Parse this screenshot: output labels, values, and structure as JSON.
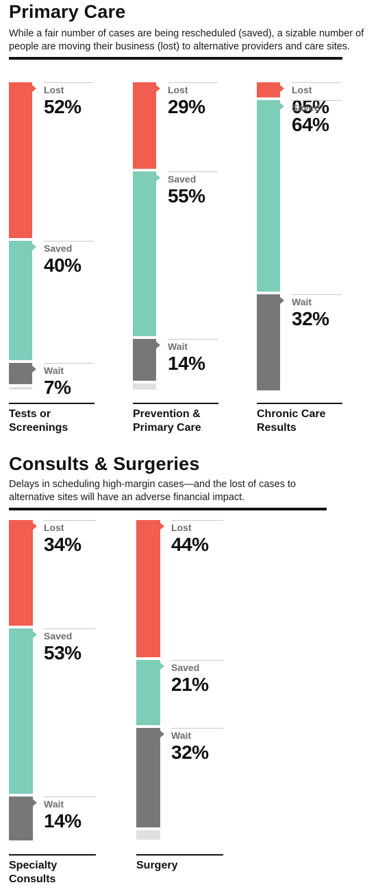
{
  "colors": {
    "lost": "#f15d4f",
    "saved": "#7dcdb9",
    "wait": "#777777",
    "remainder": "#e0e0e0"
  },
  "sections": [
    {
      "title": "Primary Care",
      "subtitle": "While a fair number of cases are being rescheduled (saved), a sizable number of people are moving their business (lost) to alternative providers and care sites."
    },
    {
      "title": "Consults & Surgeries",
      "subtitle": "Delays in scheduling high-margin cases—and the lost of cases to alternative sites will have an adverse financial impact."
    }
  ],
  "chart_data": [
    {
      "type": "bar",
      "title": "Primary Care",
      "categories": [
        "Tests or Screenings",
        "Prevention & Primary Care",
        "Chronic Care Results"
      ],
      "series": [
        {
          "name": "Lost",
          "values": [
            52,
            29,
            5
          ],
          "labels": [
            "52%",
            "29%",
            "05%"
          ]
        },
        {
          "name": "Saved",
          "values": [
            40,
            55,
            64
          ],
          "labels": [
            "40%",
            "55%",
            "64%"
          ]
        },
        {
          "name": "Wait",
          "values": [
            7,
            14,
            32
          ],
          "labels": [
            "7%",
            "14%",
            "32%"
          ]
        }
      ],
      "columns": [
        {
          "name_lines": [
            "Tests or",
            "Screenings"
          ]
        },
        {
          "name_lines": [
            "Prevention &",
            "Primary Care"
          ]
        },
        {
          "name_lines": [
            "Chronic Care",
            "Results"
          ]
        }
      ]
    },
    {
      "type": "bar",
      "title": "Consults & Surgeries",
      "categories": [
        "Specialty Consults",
        "Surgery"
      ],
      "series": [
        {
          "name": "Lost",
          "values": [
            34,
            44
          ],
          "labels": [
            "34%",
            "44%"
          ]
        },
        {
          "name": "Saved",
          "values": [
            53,
            21
          ],
          "labels": [
            "53%",
            "21%"
          ]
        },
        {
          "name": "Wait",
          "values": [
            14,
            32
          ],
          "labels": [
            "14%",
            "32%"
          ]
        }
      ],
      "columns": [
        {
          "name_lines": [
            "Specialty",
            "Consults"
          ]
        },
        {
          "name_lines": [
            "Surgery"
          ]
        }
      ]
    }
  ]
}
